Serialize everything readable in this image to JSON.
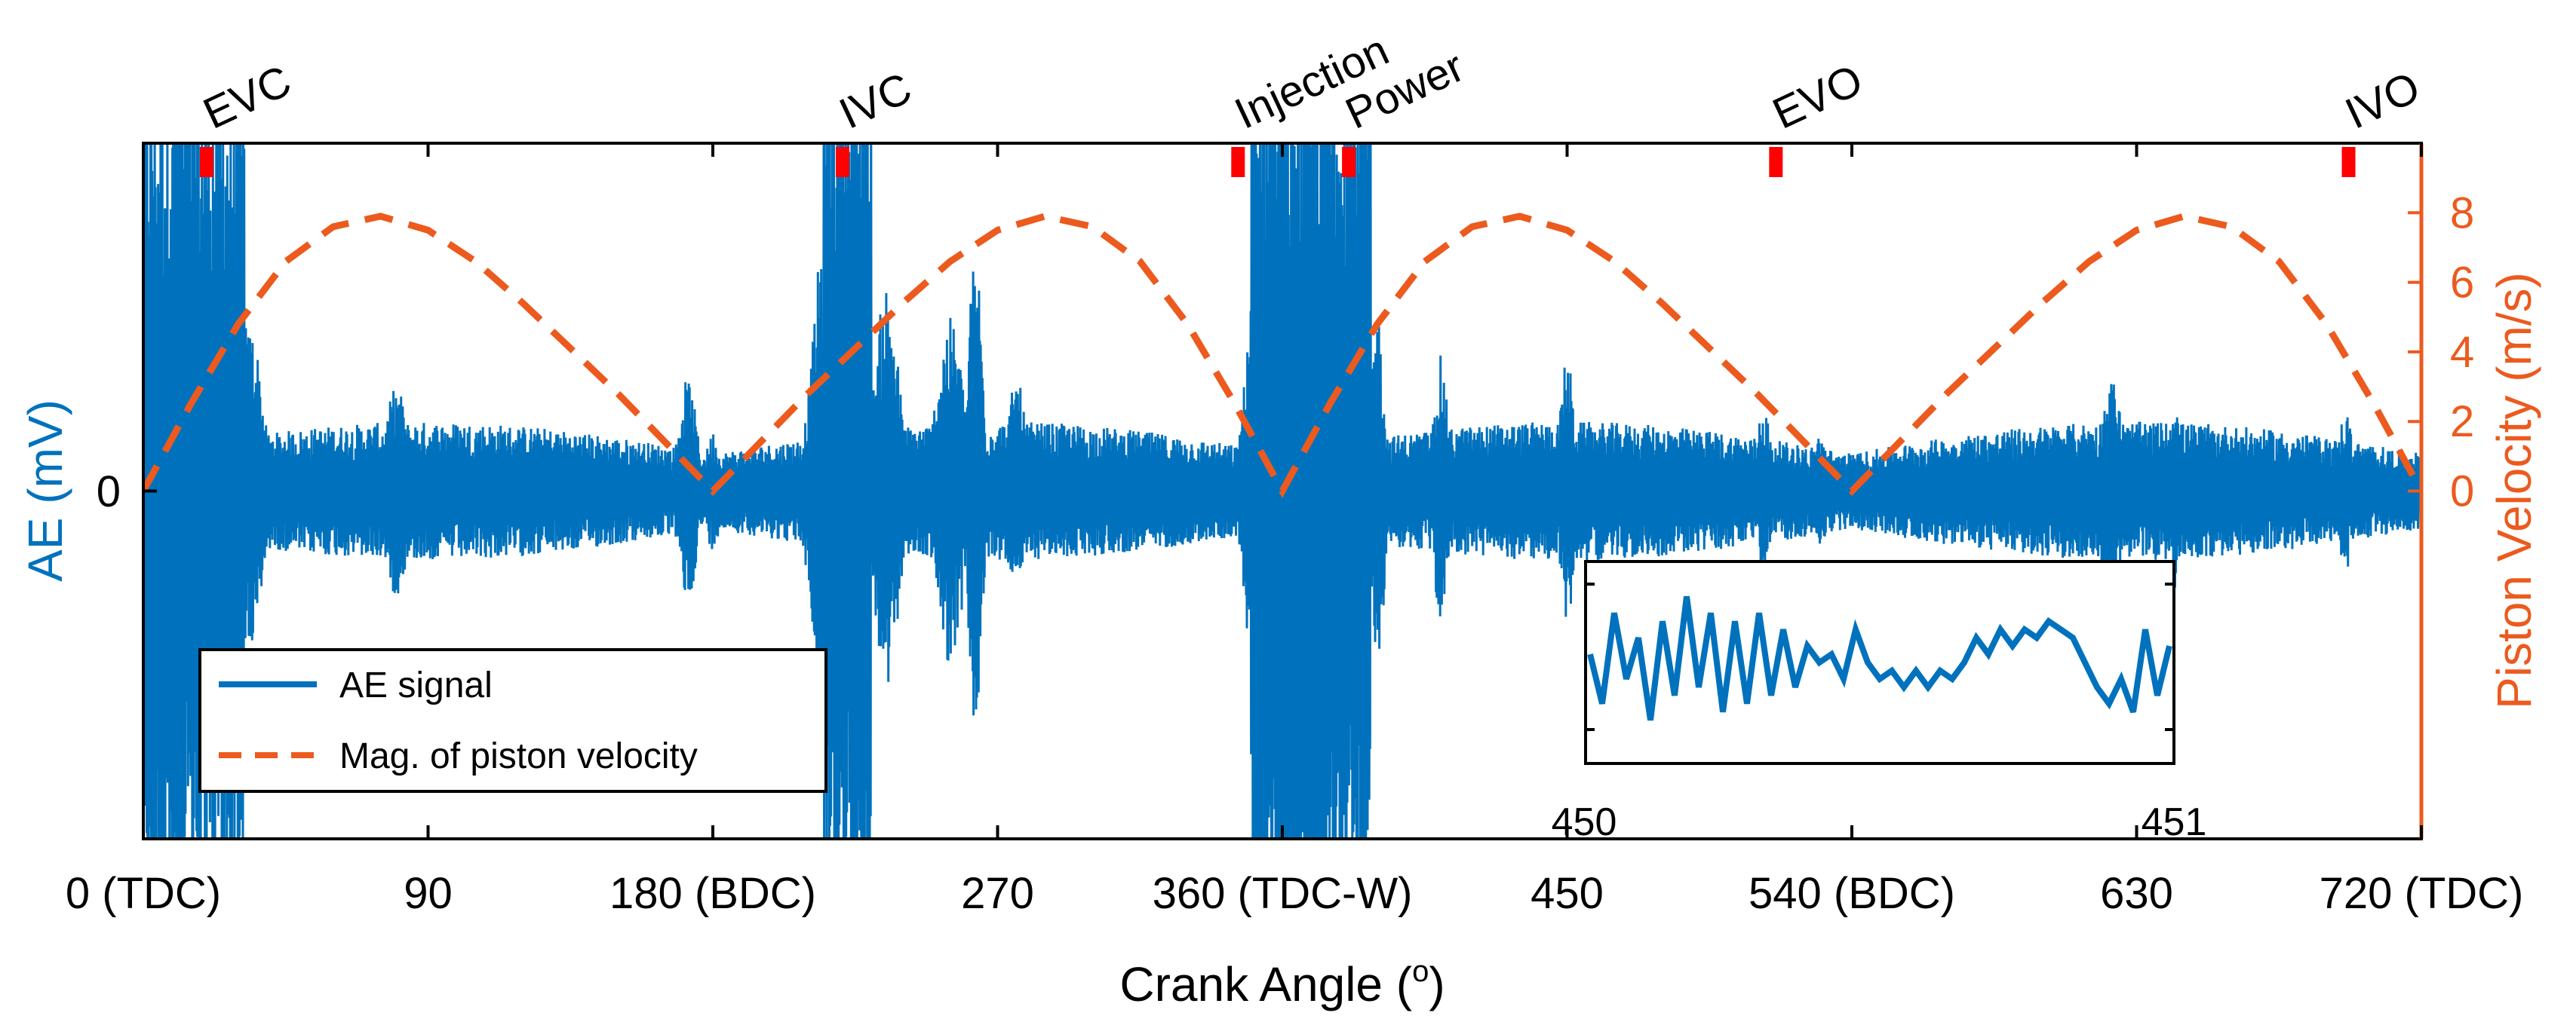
{
  "colors": {
    "ae": "#0072BD",
    "velocity": "#EC5A1E",
    "marker": "#FF0000",
    "axis": "#000000"
  },
  "chart_data": {
    "type": "line",
    "xlabel_main": "Crank Angle (",
    "xlabel_sup": "o",
    "xlabel_end": ")",
    "ylabel_left": "AE (mV)",
    "ylabel_right": "Piston Velocity (m/s)",
    "xlim": [
      0,
      720
    ],
    "ylim_right": [
      -10,
      10
    ],
    "x_ticks": [
      0,
      90,
      180,
      270,
      360,
      450,
      540,
      630,
      720
    ],
    "x_tick_labels": [
      "0 (TDC)",
      "90",
      "180 (BDC)",
      "270",
      "360 (TDC-W)",
      "450",
      "540 (BDC)",
      "630",
      "720 (TDC)"
    ],
    "y_left_ticks": [
      0
    ],
    "y_left_tick_labels": [
      "0"
    ],
    "y_right_ticks": [
      0,
      2,
      4,
      6,
      8
    ],
    "y_right_tick_labels": [
      "0",
      "2",
      "4",
      "6",
      "8"
    ],
    "events": [
      {
        "label": "EVC",
        "angle": 20
      },
      {
        "label": "IVC",
        "angle": 221
      },
      {
        "label": "Injection",
        "angle": 346
      },
      {
        "label": "Power",
        "angle": 381
      },
      {
        "label": "EVO",
        "angle": 516
      },
      {
        "label": "IVO",
        "angle": 697
      }
    ],
    "series": [
      {
        "name": "AE signal",
        "style": "solid",
        "description_free": true
      },
      {
        "name": "Mag. of piston velocity",
        "style": "dashed",
        "x": [
          0,
          15,
          30,
          45,
          60,
          75,
          90,
          105,
          120,
          135,
          150,
          165,
          180,
          195,
          210,
          225,
          240,
          255,
          270,
          285,
          300,
          315,
          330,
          345,
          360,
          375,
          390,
          405,
          420,
          435,
          450,
          465,
          480,
          495,
          510,
          525,
          540,
          555,
          570,
          585,
          600,
          615,
          630,
          645,
          660,
          675,
          690,
          705,
          720
        ],
        "values": [
          0,
          2.5,
          4.8,
          6.6,
          7.6,
          7.9,
          7.5,
          6.6,
          5.4,
          4.1,
          2.8,
          1.4,
          0,
          1.4,
          2.8,
          4.1,
          5.4,
          6.6,
          7.5,
          7.9,
          7.6,
          6.6,
          4.8,
          2.5,
          0,
          2.5,
          4.8,
          6.6,
          7.6,
          7.9,
          7.5,
          6.6,
          5.4,
          4.1,
          2.8,
          1.4,
          0,
          1.4,
          2.8,
          4.1,
          5.4,
          6.6,
          7.5,
          7.9,
          7.6,
          6.6,
          4.8,
          2.5,
          0
        ]
      }
    ],
    "inset": {
      "x_tick_labels": [
        "450",
        "451"
      ],
      "values": [
        0.1,
        -0.5,
        0.6,
        -0.2,
        0.3,
        -0.7,
        0.5,
        -0.4,
        0.8,
        -0.3,
        0.6,
        -0.6,
        0.5,
        -0.5,
        0.6,
        -0.4,
        0.4,
        -0.3,
        0.2,
        0.0,
        0.1,
        -0.2,
        0.4,
        0.0,
        -0.2,
        -0.1,
        -0.3,
        -0.1,
        -0.3,
        -0.1,
        -0.2,
        0.0,
        0.3,
        0.1,
        0.4,
        0.2,
        0.4,
        0.3,
        0.5,
        0.4,
        0.3,
        0.0,
        -0.3,
        -0.5,
        -0.2,
        -0.6,
        0.4,
        -0.4,
        0.2
      ]
    },
    "legend_position": "bottom-left"
  }
}
